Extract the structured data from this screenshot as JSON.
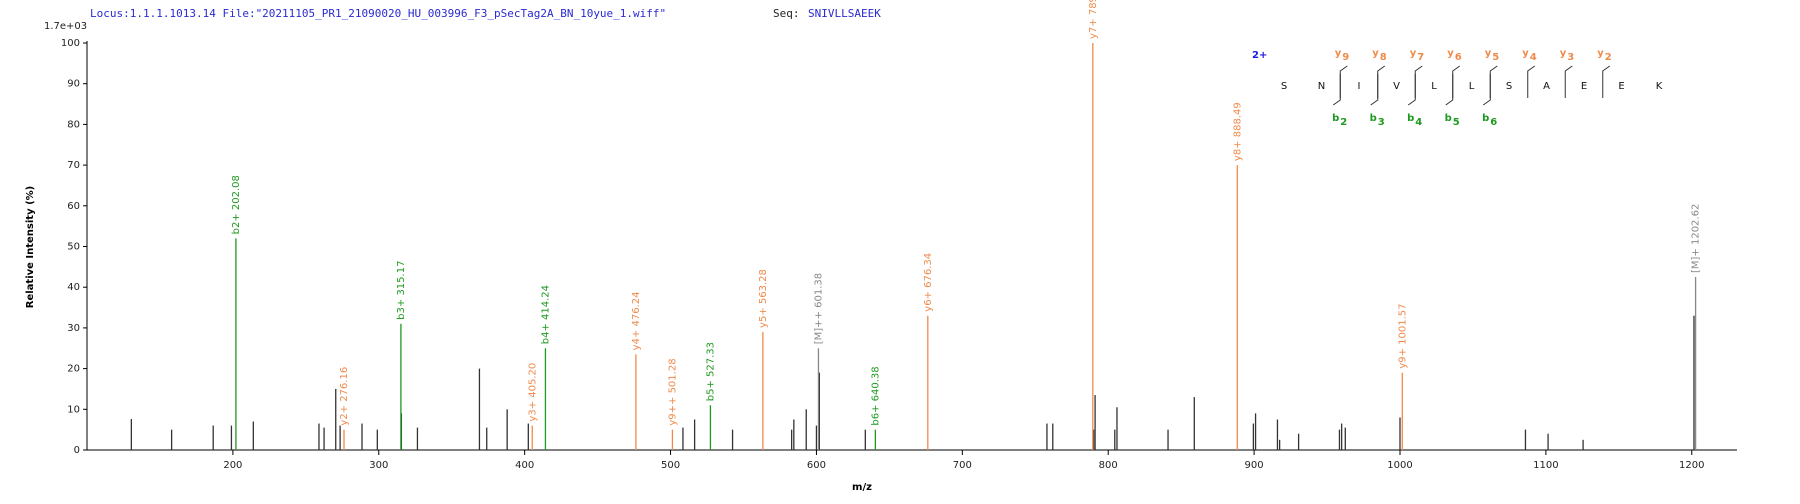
{
  "header": {
    "locus": "Locus:1.1.1.1013.14 File:\"20211105_PR1_21090020_HU_003996_F3_pSecTag2A_BN_10yue_1.wiff\"",
    "seq_label": "Seq:",
    "sequence": "SNIVLLSAEEK"
  },
  "chart_data": {
    "type": "spectrum",
    "scale_label": "1.7e+03",
    "xlabel": "m/z",
    "ylabel": "Relative Intensity (%)",
    "xlim": [
      100,
      1231
    ],
    "ylim": [
      0,
      100
    ],
    "xticks": [
      200,
      300,
      400,
      500,
      600,
      700,
      800,
      900,
      1000,
      1100,
      1200
    ],
    "yticks": [
      0,
      10,
      20,
      30,
      40,
      50,
      60,
      70,
      80,
      90,
      100
    ],
    "series": [
      {
        "color": "#333333",
        "x": [
          130.4,
          158,
          186.5,
          199,
          214,
          259,
          262.5,
          270.5,
          273.5,
          288.5,
          299,
          315.5,
          326.5,
          369,
          374,
          388,
          402.5,
          508.5,
          516.5,
          542.5,
          583,
          584.5,
          593,
          600,
          602,
          633.5,
          758,
          762,
          790,
          791,
          804.5,
          806,
          841,
          859,
          899.5,
          901,
          916,
          917.5,
          930.5,
          958.5,
          960,
          962.5,
          1000,
          1086,
          1101.5,
          1125.5,
          1201.5
        ],
        "values": [
          7.6,
          5,
          6,
          6,
          7,
          6.5,
          5.5,
          15,
          6,
          6.5,
          5,
          9,
          5.5,
          20,
          5.5,
          10,
          6.5,
          5.5,
          7.5,
          5,
          5,
          7.5,
          10,
          6,
          19,
          5,
          6.5,
          6.5,
          5,
          13.5,
          5,
          10.5,
          5,
          13,
          6.5,
          9,
          7.5,
          2.5,
          4,
          5,
          6.5,
          5.5,
          8,
          5,
          4,
          2.5,
          33
        ]
      },
      {
        "color": "#f08a4b",
        "x": [
          276.16,
          405.2,
          476.24,
          501.28,
          563.28,
          676.34,
          789.43,
          888.49,
          1001.57
        ],
        "values": [
          5,
          6,
          23.5,
          5,
          29,
          33,
          100,
          70,
          19
        ],
        "labels": [
          "y2+ 276.16",
          "y3+ 405.20",
          "y4+ 476.24",
          "y9++ 501.28",
          "y5+ 563.28",
          "y6+ 676.34",
          "y7+ 789.43",
          "y8+ 888.49",
          "y9+ 1001.57"
        ]
      },
      {
        "color": "#1e9a1e",
        "x": [
          202.08,
          315.17,
          414.24,
          527.33,
          640.38
        ],
        "values": [
          52,
          31,
          25,
          11,
          5
        ],
        "labels": [
          "b2+ 202.08",
          "b3+ 315.17",
          "b4+ 414.24",
          "b5+ 527.33",
          "b6+ 640.38"
        ]
      },
      {
        "color": "#888888",
        "x": [
          601.38,
          1202.62
        ],
        "values": [
          25,
          42.5
        ],
        "labels": [
          "[M]++ 601.38",
          "[M]+ 1202.62"
        ]
      }
    ]
  },
  "sequence_annotation": {
    "charge": "2+",
    "residues": [
      "S",
      "N",
      "I",
      "V",
      "L",
      "L",
      "S",
      "A",
      "E",
      "E",
      "K"
    ],
    "y_ions": [
      {
        "ion": "y",
        "index": 9
      },
      {
        "ion": "y",
        "index": 8
      },
      {
        "ion": "y",
        "index": 7
      },
      {
        "ion": "y",
        "index": 6
      },
      {
        "ion": "y",
        "index": 5
      },
      {
        "ion": "y",
        "index": 4
      },
      {
        "ion": "y",
        "index": 3
      },
      {
        "ion": "y",
        "index": 2
      }
    ],
    "b_ions": [
      {
        "ion": "b",
        "index": 2
      },
      {
        "ion": "b",
        "index": 3
      },
      {
        "ion": "b",
        "index": 4
      },
      {
        "ion": "b",
        "index": 5
      },
      {
        "ion": "b",
        "index": 6
      }
    ]
  }
}
